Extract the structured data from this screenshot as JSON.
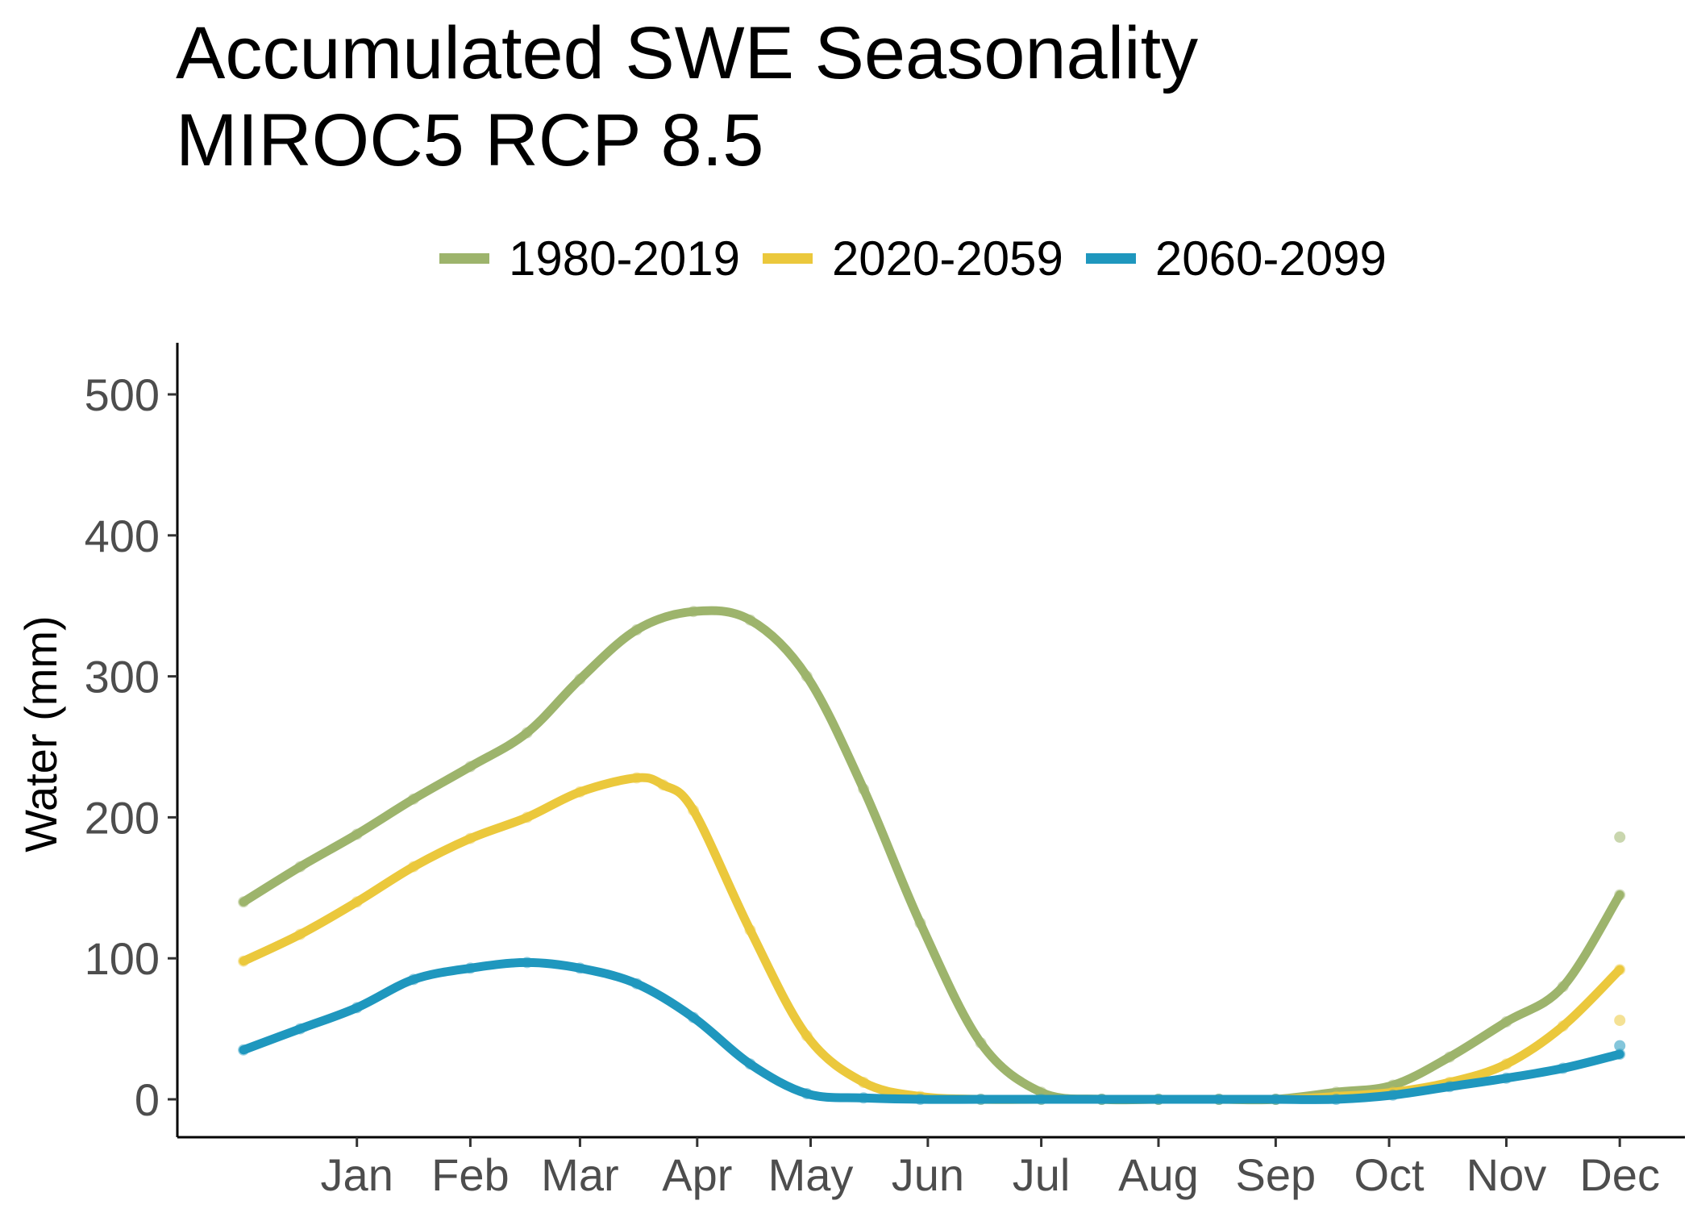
{
  "chart_data": {
    "type": "line",
    "title_lines": [
      "Accumulated SWE Seasonality",
      "MIROC5 RCP 8.5"
    ],
    "xlabel": "",
    "ylabel": "Water (mm)",
    "ylim": [
      -25,
      535
    ],
    "yticks": [
      0,
      100,
      200,
      300,
      400,
      500
    ],
    "xticks": [
      "Jan",
      "Feb",
      "Mar",
      "Apr",
      "May",
      "Jun",
      "Jul",
      "Aug",
      "Sep",
      "Oct",
      "Nov",
      "Dec"
    ],
    "x_unit": "day of year (centered on month midpoints)",
    "xlim": [
      -30,
      385
    ],
    "grid": false,
    "legend_position": "top",
    "series": [
      {
        "name": "1980-2019",
        "color": "#9db46c",
        "x": [
          -15,
          0,
          15,
          30,
          45,
          60,
          74,
          89,
          104,
          119,
          134,
          149,
          164,
          180,
          196,
          212,
          227,
          243,
          258,
          274,
          289,
          304,
          319,
          334,
          349
        ],
        "y": [
          140,
          165,
          188,
          213,
          236,
          260,
          298,
          333,
          346,
          340,
          300,
          220,
          125,
          40,
          5,
          0,
          0,
          0,
          0,
          5,
          10,
          30,
          55,
          80,
          145
        ]
      },
      {
        "name": "2020-2059",
        "color": "#ebc83c",
        "x": [
          -15,
          0,
          15,
          30,
          45,
          60,
          74,
          89,
          96,
          104,
          119,
          134,
          149,
          164,
          180,
          196,
          212,
          227,
          243,
          258,
          274,
          289,
          304,
          319,
          334,
          349
        ],
        "y": [
          98,
          117,
          140,
          165,
          185,
          200,
          218,
          228,
          223,
          205,
          120,
          45,
          12,
          2,
          0,
          0,
          0,
          0,
          0,
          0,
          2,
          5,
          12,
          25,
          52,
          92
        ]
      },
      {
        "name": "2060-2099",
        "color": "#1f97be",
        "x": [
          -15,
          0,
          15,
          30,
          45,
          60,
          74,
          89,
          104,
          119,
          134,
          149,
          164,
          180,
          196,
          212,
          227,
          243,
          258,
          274,
          289,
          304,
          319,
          334,
          349
        ],
        "y": [
          35,
          50,
          65,
          85,
          93,
          97,
          93,
          82,
          58,
          25,
          4,
          1,
          0,
          0,
          0,
          0,
          0,
          0,
          0,
          0,
          3,
          9,
          15,
          22,
          32
        ]
      }
    ],
    "outlier_points": [
      {
        "series": "1980-2019",
        "x": 349,
        "y": 186
      },
      {
        "series": "2020-2059",
        "x": 349,
        "y": 56
      },
      {
        "series": "2060-2099",
        "x": 349,
        "y": 38
      }
    ]
  }
}
